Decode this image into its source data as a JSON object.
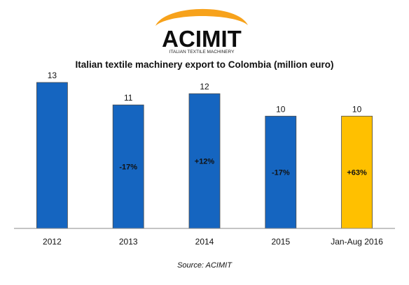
{
  "logo": {
    "name": "ACIMIT",
    "tagline": "ITALIAN TEXTILE MACHINERY"
  },
  "chart_data": {
    "type": "bar",
    "title": "Italian textile machinery export to Colombia (million euro)",
    "categories": [
      "2012",
      "2013",
      "2014",
      "2015",
      "Jan-Aug 2016"
    ],
    "values": [
      13,
      11,
      12,
      10,
      10
    ],
    "change_labels": [
      "",
      "-17%",
      "+12%",
      "-17%",
      "+63%"
    ],
    "bar_colors": [
      "#1565c0",
      "#1565c0",
      "#1565c0",
      "#1565c0",
      "#ffc000"
    ],
    "value_labels_shown": true,
    "grid": false,
    "legend": "none",
    "ylim": [
      0,
      13.5
    ]
  },
  "source": "Source: ACIMIT"
}
